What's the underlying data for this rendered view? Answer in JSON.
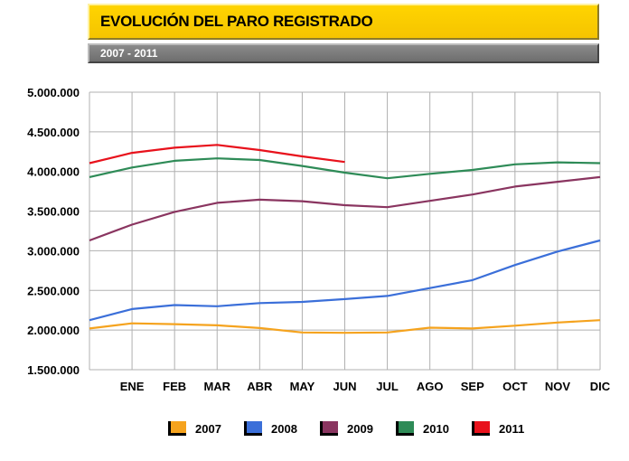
{
  "header": {
    "title": "EVOLUCIÓN DEL PARO REGISTRADO",
    "subtitle": "2007 - 2011"
  },
  "chart_data": {
    "type": "line",
    "categories": [
      "",
      "ENE",
      "FEB",
      "MAR",
      "ABR",
      "MAY",
      "JUN",
      "JUL",
      "AGO",
      "SEP",
      "OCT",
      "NOV",
      "DIC"
    ],
    "ylim": [
      1500000,
      5000000
    ],
    "yticks": [
      5000000,
      4500000,
      4000000,
      3500000,
      3000000,
      2500000,
      2000000,
      1500000
    ],
    "ytick_labels": [
      "5.000.000",
      "4.500.000",
      "4.000.000",
      "3.500.000",
      "3.000.000",
      "2.500.000",
      "2.000.000",
      "1.500.000"
    ],
    "grid": true,
    "legend_position": "bottom",
    "series": [
      {
        "name": "2007",
        "color": "#f5a31e",
        "values": [
          2020000,
          2085000,
          2075000,
          2060000,
          2025000,
          1970000,
          1965000,
          1970000,
          2030000,
          2020000,
          2055000,
          2095000,
          2125000
        ]
      },
      {
        "name": "2008",
        "color": "#3b6fd9",
        "values": [
          2125000,
          2265000,
          2315000,
          2300000,
          2340000,
          2355000,
          2390000,
          2430000,
          2530000,
          2630000,
          2820000,
          2990000,
          3130000
        ]
      },
      {
        "name": "2009",
        "color": "#8a3560",
        "values": [
          3130000,
          3330000,
          3490000,
          3605000,
          3645000,
          3625000,
          3575000,
          3550000,
          3630000,
          3710000,
          3810000,
          3870000,
          3930000
        ]
      },
      {
        "name": "2010",
        "color": "#2e8b57",
        "values": [
          3930000,
          4050000,
          4135000,
          4165000,
          4145000,
          4070000,
          3985000,
          3915000,
          3970000,
          4020000,
          4090000,
          4115000,
          4105000
        ]
      },
      {
        "name": "2011",
        "color": "#e8121c",
        "values": [
          4105000,
          4235000,
          4300000,
          4335000,
          4270000,
          4190000,
          4120000,
          null,
          null,
          null,
          null,
          null,
          null
        ]
      }
    ]
  }
}
